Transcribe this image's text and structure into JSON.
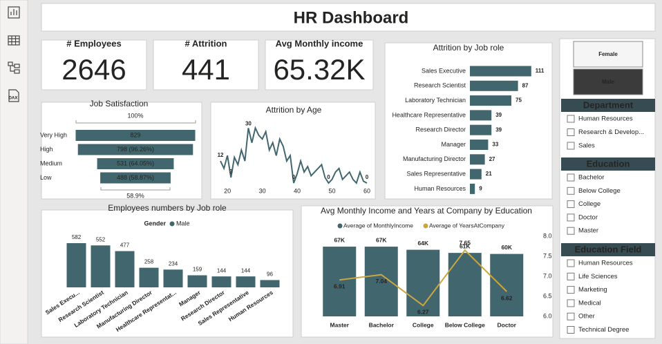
{
  "sidebar": {
    "dax_label": "DAX"
  },
  "header": {
    "title": "HR Dashboard"
  },
  "kpis": [
    {
      "label": "# Employees",
      "value": 2646
    },
    {
      "label": "# Attrition",
      "value": 441
    },
    {
      "label": "Avg Monthly income",
      "value": "65.32K"
    }
  ],
  "slicers": {
    "gender": {
      "options": [
        "Female",
        "Male"
      ],
      "selected": "Male"
    },
    "department": {
      "title": "Department",
      "options": [
        "Human Resources",
        "Research & Develop...",
        "Sales"
      ]
    },
    "education": {
      "title": "Education",
      "options": [
        "Bachelor",
        "Below College",
        "College",
        "Doctor",
        "Master"
      ]
    },
    "education_field": {
      "title": "Education Field",
      "options": [
        "Human Resources",
        "Life Sciences",
        "Marketing",
        "Medical",
        "Other",
        "Technical Degree"
      ]
    }
  },
  "chart_data": [
    {
      "type": "funnel",
      "title": "Job Satisfaction",
      "categories": [
        "Very High",
        "High",
        "Medium",
        "Low"
      ],
      "values": [
        829,
        798,
        531,
        488
      ],
      "value_labels": [
        "829",
        "798 (96.26%)",
        "531 (64.05%)",
        "488 (58.87%)"
      ],
      "top_label": "100%",
      "bottom_label": "58.9%",
      "color": "#41666e"
    },
    {
      "type": "line",
      "title": "Attrition by Age",
      "x": [
        18,
        19,
        20,
        21,
        22,
        23,
        24,
        25,
        26,
        27,
        28,
        29,
        30,
        31,
        32,
        33,
        34,
        35,
        36,
        37,
        38,
        39,
        40,
        41,
        42,
        43,
        44,
        45,
        46,
        47,
        48,
        49,
        50,
        51,
        52,
        53,
        54,
        55,
        56,
        57,
        58,
        59,
        60
      ],
      "values": [
        12,
        8,
        15,
        3,
        14,
        10,
        18,
        12,
        30,
        22,
        30,
        26,
        24,
        28,
        18,
        22,
        15,
        24,
        20,
        12,
        15,
        0,
        5,
        12,
        6,
        9,
        4,
        6,
        8,
        10,
        3,
        0,
        2,
        6,
        8,
        2,
        4,
        6,
        2,
        0,
        6,
        1,
        0
      ],
      "value_labels": [
        "12",
        null,
        null,
        "3",
        null,
        null,
        null,
        null,
        "30",
        null,
        null,
        null,
        null,
        null,
        null,
        null,
        null,
        null,
        null,
        null,
        null,
        "0",
        null,
        null,
        null,
        null,
        null,
        null,
        null,
        null,
        null,
        "0",
        null,
        null,
        null,
        null,
        null,
        null,
        null,
        null,
        null,
        null,
        "0"
      ],
      "xlim": [
        17,
        61
      ],
      "xticks": [
        20,
        30,
        40,
        50,
        60
      ],
      "ylim": [
        0,
        32
      ],
      "color": "#41666e"
    },
    {
      "type": "bar",
      "orientation": "horizontal",
      "title": "Attrition by Job role",
      "categories": [
        "Sales Executive",
        "Research Scientist",
        "Laboratory Technician",
        "Healthcare Representative",
        "Research Director",
        "Manager",
        "Manufacturing Director",
        "Sales Representative",
        "Human Resources"
      ],
      "values": [
        111,
        87,
        75,
        39,
        39,
        33,
        27,
        21,
        9
      ],
      "xlim": [
        0,
        125
      ],
      "color": "#41666e"
    },
    {
      "type": "bar",
      "title": "Employees numbers by Job role",
      "legend_title": "Gender",
      "categories": [
        "Sales Execu...",
        "Research Scientist",
        "Laboratory Technician",
        "Manufacturing Director",
        "Healthcare Representat...",
        "Manager",
        "Research Director",
        "Sales Representative",
        "Human Resources"
      ],
      "series": [
        {
          "name": "Male",
          "color": "#41666e",
          "values": [
            582,
            552,
            477,
            258,
            234,
            159,
            144,
            144,
            96
          ]
        }
      ],
      "ylim": [
        0,
        700
      ]
    },
    {
      "type": "combo",
      "title": "Avg Monthly Income and Years at Company by Education",
      "categories": [
        "Master",
        "Bachelor",
        "College",
        "Below College",
        "Doctor"
      ],
      "series": [
        {
          "name": "Average of MonthlyIncome",
          "type": "bar",
          "color": "#41666e",
          "values": [
            67000,
            67000,
            64000,
            61000,
            60000
          ],
          "value_labels": [
            "67K",
            "67K",
            "64K",
            "61K",
            "60K"
          ]
        },
        {
          "name": "Average of YearsAtCompany",
          "type": "line",
          "axis": "y2",
          "color": "#c9a642",
          "values": [
            6.91,
            7.04,
            6.27,
            7.65,
            6.62
          ]
        }
      ],
      "ylim": [
        0,
        77000
      ],
      "y2lim": [
        6,
        8
      ],
      "y2ticks": [
        {
          "value": 6,
          "label": "6.0"
        },
        6.5,
        {
          "value": 7,
          "label": "7.0"
        },
        7.5,
        {
          "value": 8,
          "label": "8.0"
        }
      ]
    }
  ]
}
